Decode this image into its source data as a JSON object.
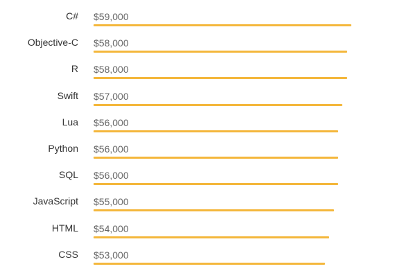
{
  "chart_data": {
    "type": "bar",
    "orientation": "horizontal",
    "categories": [
      "C#",
      "Objective-C",
      "R",
      "Swift",
      "Lua",
      "Python",
      "SQL",
      "JavaScript",
      "HTML",
      "CSS"
    ],
    "values": [
      59000,
      58000,
      58000,
      57000,
      56000,
      56000,
      56000,
      55000,
      54000,
      53000
    ],
    "value_labels": [
      "$59,000",
      "$58,000",
      "$58,000",
      "$57,000",
      "$56,000",
      "$56,000",
      "$56,000",
      "$55,000",
      "$54,000",
      "$53,000"
    ],
    "title": "",
    "xlabel": "",
    "ylabel": "",
    "xlim": [
      0,
      59000
    ],
    "grid": false,
    "bar_color": "#f4b73c"
  }
}
